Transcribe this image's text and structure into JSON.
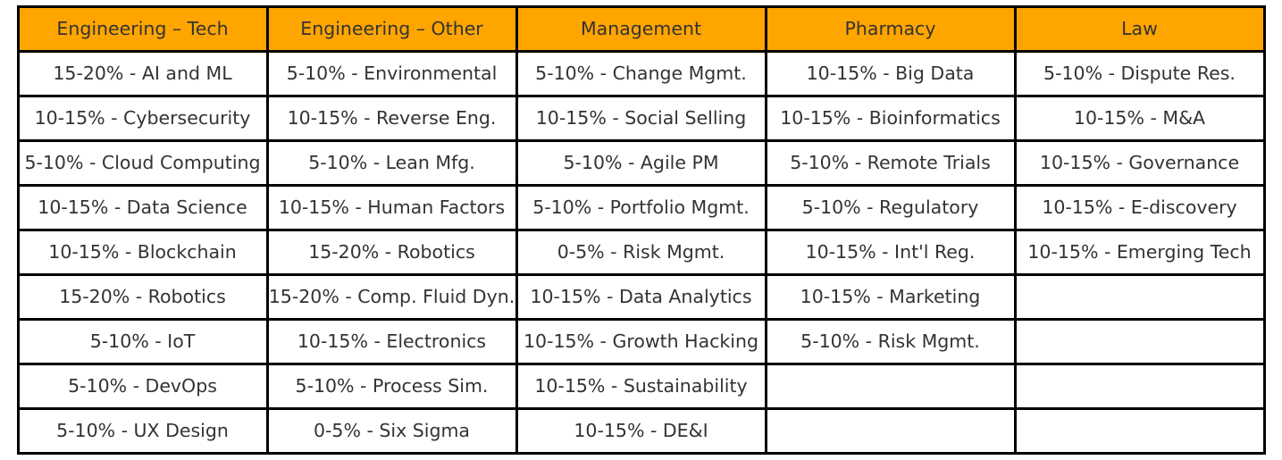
{
  "chart_data": {
    "type": "table",
    "header_color": "#ffa500",
    "border_color": "#000000",
    "text_color": "#333333",
    "columns": [
      "Engineering – Tech",
      "Engineering – Other",
      "Management",
      "Pharmacy",
      "Law"
    ],
    "rows": [
      [
        "15-20% - AI and ML",
        "5-10% - Environmental",
        "5-10% - Change Mgmt.",
        "10-15% - Big Data",
        "5-10% - Dispute Res."
      ],
      [
        "10-15% - Cybersecurity",
        "10-15% - Reverse Eng.",
        "10-15% - Social Selling",
        "10-15% - Bioinformatics",
        "10-15% - M&A"
      ],
      [
        "5-10% - Cloud Computing",
        "5-10% - Lean Mfg.",
        "5-10% - Agile PM",
        "5-10% - Remote Trials",
        "10-15% - Governance"
      ],
      [
        "10-15% - Data Science",
        "10-15% - Human Factors",
        "5-10% - Portfolio Mgmt.",
        "5-10% - Regulatory",
        "10-15% - E-discovery"
      ],
      [
        "10-15% - Blockchain",
        "15-20% - Robotics",
        "0-5% - Risk Mgmt.",
        "10-15% - Int'l Reg.",
        "10-15% - Emerging Tech"
      ],
      [
        "15-20% - Robotics",
        "15-20% - Comp. Fluid Dyn.",
        "10-15% - Data Analytics",
        "10-15% - Marketing",
        ""
      ],
      [
        "5-10% - IoT",
        "10-15% - Electronics",
        "10-15% - Growth Hacking",
        "5-10% - Risk Mgmt.",
        ""
      ],
      [
        "5-10% - DevOps",
        "5-10% - Process Sim.",
        "10-15% - Sustainability",
        "",
        ""
      ],
      [
        "5-10% - UX Design",
        "0-5% - Six Sigma",
        "10-15% - DE&I",
        "",
        ""
      ]
    ]
  }
}
